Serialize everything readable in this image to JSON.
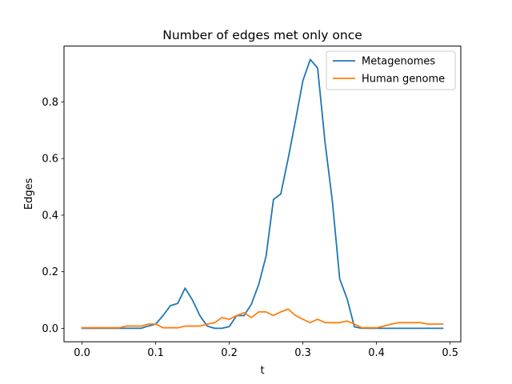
{
  "chart_data": {
    "type": "line",
    "title": "Number of edges met only once",
    "xlabel": "t",
    "ylabel": "Edges",
    "xlim": [
      -0.0245,
      0.5145
    ],
    "ylim": [
      -0.0475,
      0.9975
    ],
    "xticks": [
      0.0,
      0.1,
      0.2,
      0.3,
      0.4,
      0.5
    ],
    "xtick_labels": [
      "0.0",
      "0.1",
      "0.2",
      "0.3",
      "0.4",
      "0.5"
    ],
    "yticks": [
      0.0,
      0.2,
      0.4,
      0.6,
      0.8
    ],
    "ytick_labels": [
      "0.0",
      "0.2",
      "0.4",
      "0.6",
      "0.8"
    ],
    "grid": false,
    "legend_position": "top-right",
    "x": [
      0.0,
      0.01,
      0.02,
      0.03,
      0.04,
      0.05,
      0.06,
      0.07,
      0.08,
      0.09,
      0.1,
      0.11,
      0.12,
      0.13,
      0.14,
      0.15,
      0.16,
      0.17,
      0.18,
      0.19,
      0.2,
      0.21,
      0.22,
      0.23,
      0.24,
      0.25,
      0.26,
      0.27,
      0.28,
      0.29,
      0.3,
      0.31,
      0.32,
      0.33,
      0.34,
      0.35,
      0.36,
      0.37,
      0.38,
      0.39,
      0.4,
      0.41,
      0.42,
      0.43,
      0.44,
      0.45,
      0.46,
      0.47,
      0.48,
      0.49
    ],
    "series": [
      {
        "name": "Metagenomes",
        "color": "#1f77b4",
        "values": [
          0.0,
          0.0,
          0.0,
          0.0,
          0.0,
          0.0,
          0.0,
          0.0,
          0.0,
          0.008,
          0.015,
          0.045,
          0.08,
          0.088,
          0.142,
          0.1,
          0.045,
          0.008,
          0.0,
          0.0,
          0.006,
          0.045,
          0.045,
          0.085,
          0.155,
          0.255,
          0.455,
          0.475,
          0.6,
          0.735,
          0.875,
          0.95,
          0.92,
          0.66,
          0.45,
          0.175,
          0.105,
          0.005,
          0.0,
          0.0,
          0.0,
          0.0,
          0.0,
          0.0,
          0.0,
          0.0,
          0.0,
          0.0,
          0.0,
          0.0
        ]
      },
      {
        "name": "Human genome",
        "color": "#ff7f0e",
        "values": [
          0.002,
          0.002,
          0.002,
          0.002,
          0.002,
          0.002,
          0.008,
          0.008,
          0.008,
          0.015,
          0.015,
          0.002,
          0.002,
          0.002,
          0.008,
          0.008,
          0.008,
          0.015,
          0.02,
          0.038,
          0.032,
          0.045,
          0.055,
          0.038,
          0.058,
          0.058,
          0.045,
          0.058,
          0.068,
          0.045,
          0.032,
          0.02,
          0.032,
          0.02,
          0.02,
          0.02,
          0.026,
          0.015,
          0.002,
          0.002,
          0.002,
          0.008,
          0.015,
          0.02,
          0.02,
          0.02,
          0.02,
          0.015,
          0.015,
          0.015
        ]
      }
    ]
  }
}
